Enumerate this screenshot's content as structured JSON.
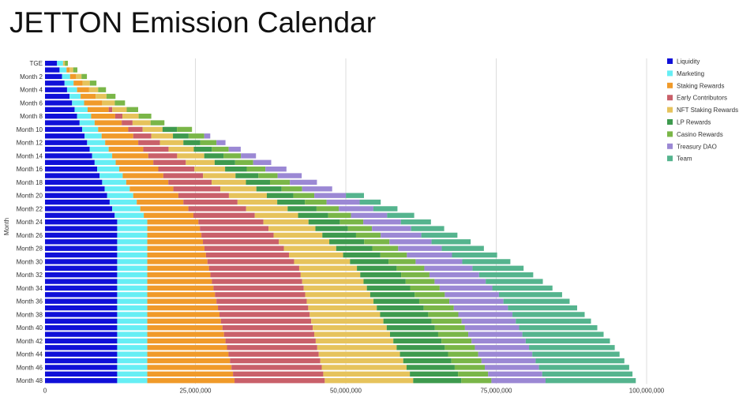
{
  "title": "JETTON Emission Calendar",
  "chart_data": {
    "type": "bar",
    "orientation": "horizontal",
    "stacked": true,
    "title": "JETTON Emission Calendar",
    "xlabel": "",
    "ylabel": "Month",
    "xlim": [
      0,
      100000000
    ],
    "x_ticks": [
      0,
      25000000,
      50000000,
      75000000,
      100000000
    ],
    "x_tick_labels": [
      "0",
      "25,000,000",
      "50,000,000",
      "75,000,000",
      "100,000,000"
    ],
    "grid": "vertical",
    "legend_position": "right",
    "categories": [
      "TGE",
      "Month 1",
      "Month 2",
      "Month 3",
      "Month 4",
      "Month 5",
      "Month 6",
      "Month 7",
      "Month 8",
      "Month 9",
      "Month 10",
      "Month 11",
      "Month 12",
      "Month 13",
      "Month 14",
      "Month 15",
      "Month 16",
      "Month 17",
      "Month 18",
      "Month 19",
      "Month 20",
      "Month 21",
      "Month 22",
      "Month 23",
      "Month 24",
      "Month 25",
      "Month 26",
      "Month 27",
      "Month 28",
      "Month 29",
      "Month 30",
      "Month 31",
      "Month 32",
      "Month 33",
      "Month 34",
      "Month 35",
      "Month 36",
      "Month 37",
      "Month 38",
      "Month 39",
      "Month 40",
      "Month 41",
      "Month 42",
      "Month 43",
      "Month 44",
      "Month 45",
      "Month 46",
      "Month 47",
      "Month 48"
    ],
    "shown_category_labels": [
      "TGE",
      "Month 2",
      "Month 4",
      "Month 6",
      "Month 8",
      "Month 10",
      "Month 12",
      "Month 14",
      "Month 16",
      "Month 18",
      "Month 20",
      "Month 22",
      "Month 24",
      "Month 26",
      "Month 28",
      "Month 30",
      "Month 32",
      "Month 34",
      "Month 36",
      "Month 38",
      "Month 40",
      "Month 42",
      "Month 44",
      "Month 46",
      "Month 48"
    ],
    "series": [
      {
        "name": "Liquidity",
        "color": "#1010d8",
        "values": [
          2000000,
          2416667,
          2833333,
          3250000,
          3666667,
          4083333,
          4500000,
          4916667,
          5333333,
          5750000,
          6166667,
          6583333,
          7000000,
          7416667,
          7833333,
          8250000,
          8666667,
          9083333,
          9500000,
          9916667,
          10333333,
          10750000,
          11166667,
          11583333,
          12000000,
          12000000,
          12000000,
          12000000,
          12000000,
          12000000,
          12000000,
          12000000,
          12000000,
          12000000,
          12000000,
          12000000,
          12000000,
          12000000,
          12000000,
          12000000,
          12000000,
          12000000,
          12000000,
          12000000,
          12000000,
          12000000,
          12000000,
          12000000,
          12000000
        ]
      },
      {
        "name": "Marketing",
        "color": "#66eef4",
        "values": [
          1000000,
          1166667,
          1333333,
          1500000,
          1666667,
          1833333,
          2000000,
          2166667,
          2333333,
          2500000,
          2666667,
          2833333,
          3000000,
          3166667,
          3333333,
          3500000,
          3666667,
          3833333,
          4000000,
          4166667,
          4333333,
          4500000,
          4666667,
          4833333,
          5000000,
          5000000,
          5000000,
          5000000,
          5000000,
          5000000,
          5000000,
          5000000,
          5000000,
          5000000,
          5000000,
          5000000,
          5000000,
          5000000,
          5000000,
          5000000,
          5000000,
          5000000,
          5000000,
          5000000,
          5000000,
          5000000,
          5000000,
          5000000,
          5000000
        ]
      },
      {
        "name": "Staking Rewards",
        "color": "#f09a2a",
        "values": [
          0,
          500000,
          1000000,
          1500000,
          2000000,
          2500000,
          3000000,
          3500000,
          4000000,
          4500000,
          5000000,
          5250000,
          5500000,
          5750000,
          6000000,
          6250000,
          6500000,
          6750000,
          7000000,
          7250000,
          7500000,
          7750000,
          8000000,
          8250000,
          8500000,
          8750000,
          9000000,
          9250000,
          9500000,
          9750000,
          10000000,
          10250000,
          10500000,
          10750000,
          11000000,
          11250000,
          11500000,
          11750000,
          12000000,
          12250000,
          12500000,
          12750000,
          13000000,
          13250000,
          13500000,
          13750000,
          14000000,
          14250000,
          14500000
        ]
      },
      {
        "name": "Early Contributors",
        "color": "#c9606a",
        "values": [
          0,
          0,
          0,
          0,
          0,
          0,
          0,
          600000,
          1200000,
          1800000,
          2400000,
          3000000,
          3600000,
          4200000,
          4800000,
          5400000,
          6000000,
          6600000,
          7200000,
          7800000,
          8400000,
          9000000,
          9600000,
          10200000,
          10800000,
          11400000,
          12000000,
          12600000,
          13200000,
          13800000,
          14400000,
          15000000,
          15000000,
          15000000,
          15000000,
          15000000,
          15000000,
          15000000,
          15000000,
          15000000,
          15000000,
          15000000,
          15000000,
          15000000,
          15000000,
          15000000,
          15000000,
          15000000,
          15000000
        ]
      },
      {
        "name": "NFT Staking Rewards",
        "color": "#e6c35c",
        "values": [
          300000,
          600000,
          900000,
          1200000,
          1500000,
          1800000,
          2100000,
          2400000,
          2700000,
          3000000,
          3300000,
          3600000,
          3900000,
          4200000,
          4500000,
          4800000,
          5100000,
          5400000,
          5700000,
          6000000,
          6300000,
          6600000,
          6900000,
          7200000,
          7500000,
          7800000,
          8100000,
          8400000,
          8700000,
          9000000,
          9300000,
          9600000,
          9900000,
          10200000,
          10500000,
          10800000,
          11100000,
          11400000,
          11700000,
          12000000,
          12300000,
          12600000,
          12900000,
          13200000,
          13500000,
          13800000,
          14100000,
          14400000,
          14700000
        ]
      },
      {
        "name": "LP Rewards",
        "color": "#3e9a4e",
        "values": [
          0,
          0,
          0,
          0,
          0,
          0,
          0,
          0,
          0,
          0,
          2400000,
          2600000,
          2800000,
          3000000,
          3200000,
          3400000,
          3600000,
          3800000,
          4000000,
          4200000,
          4400000,
          4600000,
          4800000,
          5000000,
          5200000,
          5400000,
          5600000,
          5800000,
          6000000,
          6200000,
          6400000,
          6600000,
          6800000,
          7000000,
          7200000,
          7400000,
          7600000,
          7800000,
          8000000,
          8000000,
          8000000,
          8000000,
          8000000,
          8000000,
          8000000,
          8000000,
          8000000,
          8000000,
          8000000
        ]
      },
      {
        "name": "Casino Rewards",
        "color": "#7ab648",
        "values": [
          500000,
          700000,
          900000,
          1100000,
          1300000,
          1500000,
          1700000,
          1900000,
          2100000,
          2300000,
          2500000,
          2600000,
          2700000,
          2800000,
          2900000,
          3000000,
          3100000,
          3200000,
          3300000,
          3400000,
          3500000,
          3600000,
          3700000,
          3800000,
          3900000,
          4000000,
          4100000,
          4200000,
          4300000,
          4400000,
          4500000,
          4600000,
          4700000,
          4800000,
          4900000,
          5000000,
          5000000,
          5000000,
          5000000,
          5000000,
          5000000,
          5000000,
          5000000,
          5000000,
          5000000,
          5000000,
          5000000,
          5000000,
          5000000
        ]
      },
      {
        "name": "Treasury DAO",
        "color": "#9b88d4",
        "values": [
          0,
          0,
          0,
          0,
          0,
          0,
          0,
          0,
          0,
          0,
          0,
          1000000,
          1500000,
          2000000,
          2500000,
          3000000,
          3500000,
          4000000,
          4500000,
          5000000,
          5250000,
          5500000,
          5750000,
          6000000,
          6250000,
          6500000,
          6750000,
          7000000,
          7250000,
          7500000,
          7750000,
          8000000,
          8250000,
          8500000,
          8750000,
          9000000,
          9000000,
          9000000,
          9000000,
          9000000,
          9000000,
          9000000,
          9000000,
          9000000,
          9000000,
          9000000,
          9000000,
          9000000,
          9000000
        ]
      },
      {
        "name": "Team",
        "color": "#55b48e",
        "values": [
          0,
          0,
          0,
          0,
          0,
          0,
          0,
          0,
          0,
          0,
          0,
          0,
          0,
          0,
          0,
          0,
          0,
          0,
          0,
          0,
          3000000,
          3500000,
          4000000,
          4500000,
          5000000,
          5500000,
          6000000,
          6500000,
          7000000,
          7500000,
          8000000,
          8500000,
          9000000,
          9500000,
          10000000,
          10500000,
          11000000,
          11500000,
          12000000,
          12500000,
          13000000,
          13500000,
          14000000,
          14250000,
          14500000,
          14750000,
          15000000,
          15000000,
          15000000
        ]
      }
    ]
  }
}
